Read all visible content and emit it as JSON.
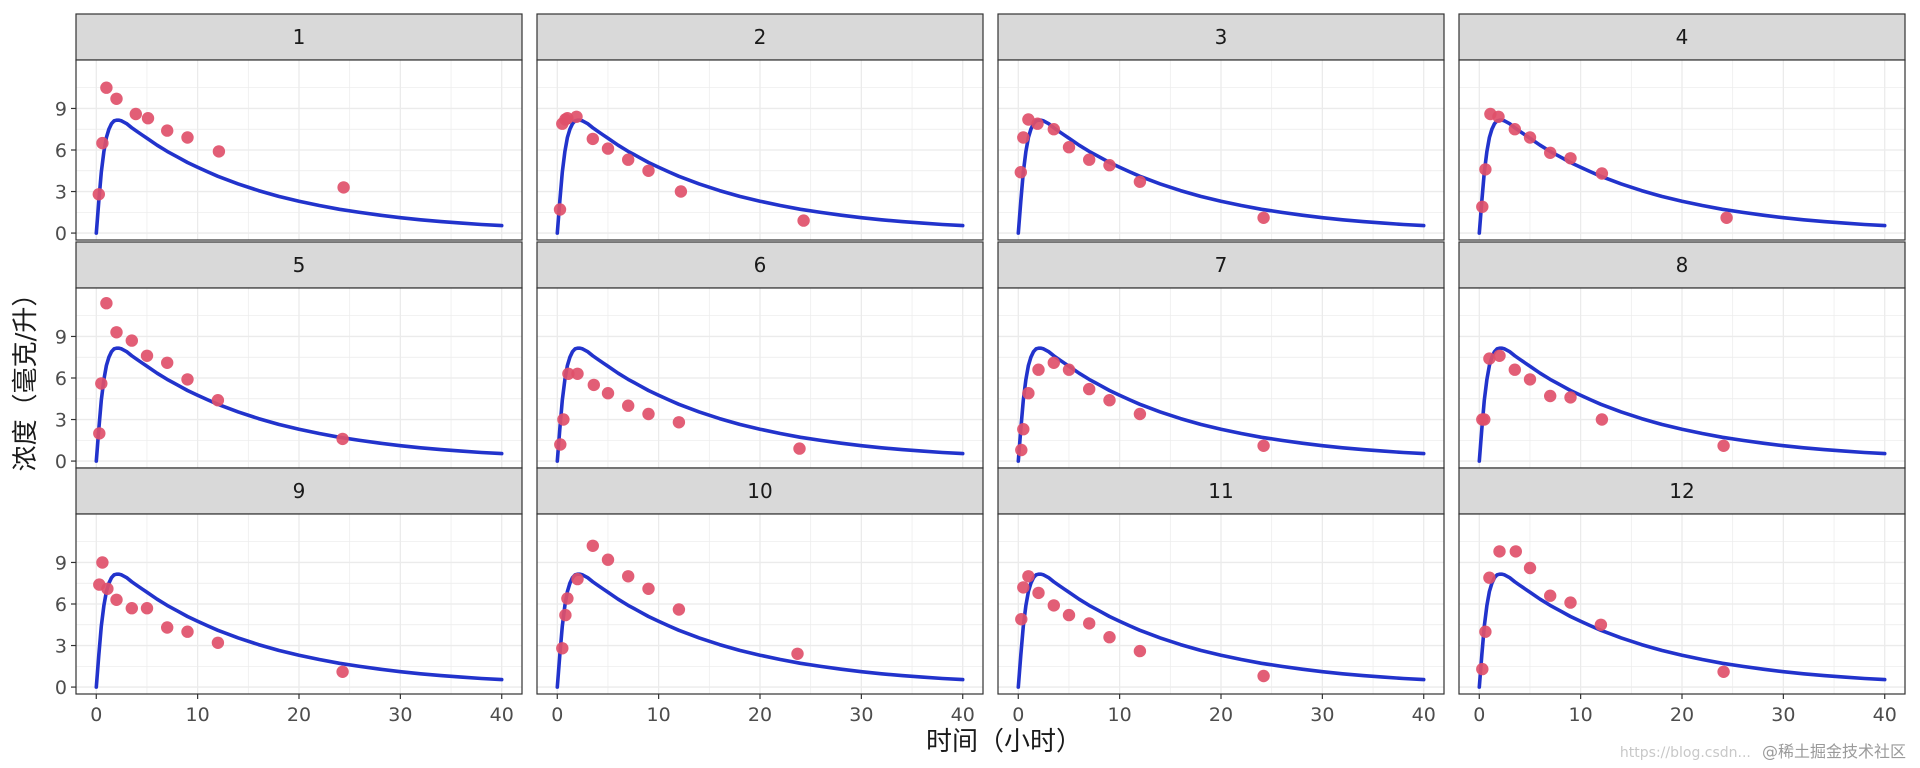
{
  "chart_data": {
    "type": "scatter",
    "xlabel": "时间（小时）",
    "ylabel": "浓度（毫克/升）",
    "xlim": [
      -2,
      42
    ],
    "ylim": [
      -0.5,
      12.5
    ],
    "x_ticks": [
      0,
      10,
      20,
      30,
      40
    ],
    "y_ticks": [
      0,
      3,
      6,
      9
    ],
    "x_tick_labels": [
      "0",
      "10",
      "20",
      "30",
      "40"
    ],
    "y_tick_labels": [
      "0",
      "3",
      "6",
      "9"
    ],
    "grid": true,
    "facet_layout": {
      "rows": 3,
      "cols": 4
    },
    "colors": {
      "points": "#e0506a",
      "curve": "#2233cc",
      "strip": "#d9d9d9",
      "grid": "#ebebeb"
    },
    "fit_curve": {
      "name": "",
      "x": [
        0,
        0.25,
        0.5,
        0.75,
        1,
        1.25,
        1.5,
        1.75,
        2,
        2.25,
        2.5,
        3,
        3.5,
        4,
        4.5,
        5,
        6,
        7,
        8,
        9,
        10,
        11,
        12,
        14,
        16,
        18,
        20,
        22,
        24,
        26,
        28,
        30,
        32,
        34,
        36,
        38,
        40
      ],
      "y": [
        0,
        2.3,
        4.4,
        5.9,
        6.9,
        7.5,
        7.9,
        8.1,
        8.15,
        8.15,
        8.1,
        7.9,
        7.6,
        7.35,
        7.1,
        6.85,
        6.35,
        5.9,
        5.5,
        5.1,
        4.75,
        4.42,
        4.1,
        3.55,
        3.07,
        2.65,
        2.3,
        1.99,
        1.72,
        1.49,
        1.29,
        1.11,
        0.96,
        0.83,
        0.72,
        0.62,
        0.54
      ]
    },
    "panels": [
      {
        "label": "1",
        "points": [
          [
            0.25,
            2.8
          ],
          [
            0.6,
            6.5
          ],
          [
            1.0,
            10.5
          ],
          [
            2.0,
            9.7
          ],
          [
            3.9,
            8.6
          ],
          [
            5.1,
            8.3
          ],
          [
            7.0,
            7.4
          ],
          [
            9.0,
            6.9
          ],
          [
            12.1,
            5.9
          ],
          [
            24.4,
            3.3
          ]
        ]
      },
      {
        "label": "2",
        "points": [
          [
            0.27,
            1.7
          ],
          [
            0.5,
            7.9
          ],
          [
            0.8,
            8.2
          ],
          [
            1.0,
            8.3
          ],
          [
            1.9,
            8.4
          ],
          [
            3.5,
            6.8
          ],
          [
            5.0,
            6.1
          ],
          [
            7.0,
            5.3
          ],
          [
            9.0,
            4.5
          ],
          [
            12.2,
            3.0
          ],
          [
            24.3,
            0.9
          ]
        ]
      },
      {
        "label": "3",
        "points": [
          [
            0.25,
            4.4
          ],
          [
            0.5,
            6.9
          ],
          [
            1.0,
            8.2
          ],
          [
            1.9,
            7.9
          ],
          [
            3.5,
            7.5
          ],
          [
            5.0,
            6.2
          ],
          [
            7.0,
            5.3
          ],
          [
            9.0,
            4.9
          ],
          [
            12.0,
            3.7
          ],
          [
            24.2,
            1.1
          ]
        ]
      },
      {
        "label": "4",
        "points": [
          [
            0.3,
            1.9
          ],
          [
            0.6,
            4.6
          ],
          [
            1.1,
            8.6
          ],
          [
            1.9,
            8.4
          ],
          [
            3.5,
            7.5
          ],
          [
            5.0,
            6.9
          ],
          [
            7.0,
            5.8
          ],
          [
            9.0,
            5.4
          ],
          [
            12.1,
            4.3
          ],
          [
            24.4,
            1.1
          ]
        ]
      },
      {
        "label": "5",
        "points": [
          [
            0.3,
            2.0
          ],
          [
            0.5,
            5.6
          ],
          [
            1.0,
            11.4
          ],
          [
            2.0,
            9.3
          ],
          [
            3.5,
            8.7
          ],
          [
            5.0,
            7.6
          ],
          [
            7.0,
            7.1
          ],
          [
            9.0,
            5.9
          ],
          [
            12.0,
            4.4
          ],
          [
            24.3,
            1.6
          ]
        ]
      },
      {
        "label": "6",
        "points": [
          [
            0.3,
            1.2
          ],
          [
            0.6,
            3.0
          ],
          [
            1.1,
            6.3
          ],
          [
            2.0,
            6.3
          ],
          [
            3.6,
            5.5
          ],
          [
            5.0,
            4.9
          ],
          [
            7.0,
            4.0
          ],
          [
            9.0,
            3.4
          ],
          [
            12.0,
            2.8
          ],
          [
            23.9,
            0.9
          ]
        ]
      },
      {
        "label": "7",
        "points": [
          [
            0.3,
            0.8
          ],
          [
            0.5,
            2.3
          ],
          [
            1.0,
            4.9
          ],
          [
            2.0,
            6.6
          ],
          [
            3.5,
            7.1
          ],
          [
            5.0,
            6.6
          ],
          [
            7.0,
            5.2
          ],
          [
            9.0,
            4.4
          ],
          [
            12.0,
            3.4
          ],
          [
            24.2,
            1.1
          ]
        ]
      },
      {
        "label": "8",
        "points": [
          [
            0.3,
            3.0
          ],
          [
            0.5,
            3.0
          ],
          [
            1.0,
            7.4
          ],
          [
            2.0,
            7.6
          ],
          [
            3.5,
            6.6
          ],
          [
            5.0,
            5.9
          ],
          [
            7.0,
            4.7
          ],
          [
            9.0,
            4.6
          ],
          [
            12.1,
            3.0
          ],
          [
            24.1,
            1.1
          ]
        ]
      },
      {
        "label": "9",
        "points": [
          [
            0.3,
            7.4
          ],
          [
            0.6,
            9.0
          ],
          [
            1.1,
            7.1
          ],
          [
            2.0,
            6.3
          ],
          [
            3.5,
            5.7
          ],
          [
            5.0,
            5.7
          ],
          [
            7.0,
            4.3
          ],
          [
            9.0,
            4.0
          ],
          [
            12.0,
            3.2
          ],
          [
            24.3,
            1.1
          ]
        ]
      },
      {
        "label": "10",
        "points": [
          [
            0.5,
            2.8
          ],
          [
            0.8,
            5.2
          ],
          [
            1.0,
            6.4
          ],
          [
            2.0,
            7.8
          ],
          [
            3.5,
            10.2
          ],
          [
            5.0,
            9.2
          ],
          [
            7.0,
            8.0
          ],
          [
            9.0,
            7.1
          ],
          [
            12.0,
            5.6
          ],
          [
            23.7,
            2.4
          ]
        ]
      },
      {
        "label": "11",
        "points": [
          [
            0.3,
            4.9
          ],
          [
            0.5,
            7.2
          ],
          [
            1.0,
            8.0
          ],
          [
            2.0,
            6.8
          ],
          [
            3.5,
            5.9
          ],
          [
            5.0,
            5.2
          ],
          [
            7.0,
            4.6
          ],
          [
            9.0,
            3.6
          ],
          [
            12.0,
            2.6
          ],
          [
            24.2,
            0.8
          ]
        ]
      },
      {
        "label": "12",
        "points": [
          [
            0.3,
            1.3
          ],
          [
            0.6,
            4.0
          ],
          [
            1.0,
            7.9
          ],
          [
            2.0,
            9.8
          ],
          [
            3.6,
            9.8
          ],
          [
            5.0,
            8.6
          ],
          [
            7.0,
            6.6
          ],
          [
            9.0,
            6.1
          ],
          [
            12.0,
            4.5
          ],
          [
            24.1,
            1.1
          ]
        ]
      }
    ]
  },
  "watermark": {
    "url": "https://blog.csdn...",
    "text": "@稀土掘金技术社区"
  }
}
